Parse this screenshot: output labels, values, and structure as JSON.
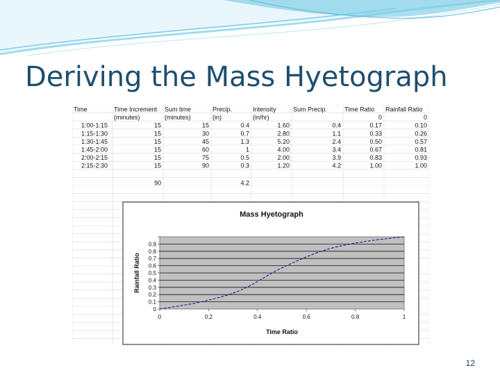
{
  "slide": {
    "title": "Deriving the Mass Hyetograph",
    "number": "12"
  },
  "colors": {
    "title": "#1f4e6e",
    "swoosh": "#7ecce6",
    "plot_background": "#c0c0c0",
    "series_line": "#1a1a8c"
  },
  "table": {
    "headers": [
      [
        "Time",
        ""
      ],
      [
        "Time Increment",
        "(minutes)"
      ],
      [
        "Sum time",
        "(minutes)"
      ],
      [
        "Precip.",
        "(in)"
      ],
      [
        "Intensity",
        "(in/hr)"
      ],
      [
        "Sum Precip.",
        ""
      ],
      [
        "Time Ratio",
        "0"
      ],
      [
        "Rainfall Ratio",
        "0"
      ]
    ],
    "rows": [
      [
        "1:00-1:15",
        "15",
        "15",
        "0.4",
        "1.60",
        "0.4",
        "0.17",
        "0.10"
      ],
      [
        "1:15-1:30",
        "15",
        "30",
        "0.7",
        "2.80",
        "1.1",
        "0.33",
        "0.26"
      ],
      [
        "1:30-1:45",
        "15",
        "45",
        "1.3",
        "5.20",
        "2.4",
        "0.50",
        "0.57"
      ],
      [
        "1:45-2:00",
        "15",
        "60",
        "1",
        "4.00",
        "3.4",
        "0.67",
        "0.81"
      ],
      [
        "2:00-2:15",
        "15",
        "75",
        "0.5",
        "2.00",
        "3.9",
        "0.83",
        "0.93"
      ],
      [
        "2:15-2:30",
        "15",
        "90",
        "0.3",
        "1.20",
        "4.2",
        "1.00",
        "1.00"
      ]
    ],
    "totals": [
      "",
      "90",
      "",
      "4.2",
      "",
      "",
      "",
      ""
    ]
  },
  "chart_data": {
    "type": "line",
    "title": "Mass Hyetograph",
    "xlabel": "Time Ratio",
    "ylabel": "Rainfall Ratio",
    "xlim": [
      0,
      1
    ],
    "ylim": [
      0,
      1
    ],
    "x_ticks": [
      "0",
      "0.2",
      "0.4",
      "0.6",
      "0.8",
      "1"
    ],
    "y_ticks": [
      "0",
      "0.1",
      "0.2",
      "0.3",
      "0.4",
      "0.5",
      "0.6",
      "0.7",
      "0.8",
      "0.9",
      "1"
    ],
    "grid": "horizontal",
    "legend": "none",
    "series": [
      {
        "x": [
          0,
          0.17,
          0.33,
          0.5,
          0.67,
          0.83,
          1.0
        ],
        "y": [
          0,
          0.1,
          0.26,
          0.57,
          0.81,
          0.93,
          1.0
        ],
        "style": "dashed"
      }
    ]
  }
}
